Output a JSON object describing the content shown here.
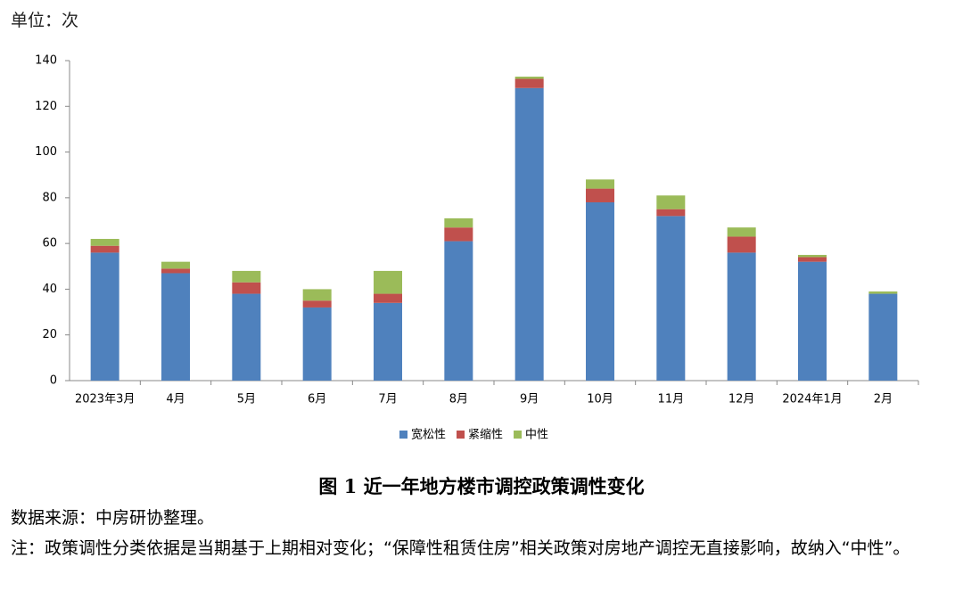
{
  "chart_data": {
    "type": "stacked_bar",
    "unit_label": "单位：次",
    "title": "图 1  近一年地方楼市调控政策调性变化",
    "categories": [
      "2023年3月",
      "4月",
      "5月",
      "6月",
      "7月",
      "8月",
      "9月",
      "10月",
      "11月",
      "12月",
      "2024年1月",
      "2月"
    ],
    "series": [
      {
        "name": "宽松性",
        "color": "#4f81bd",
        "values": [
          56,
          47,
          38,
          32,
          34,
          61,
          128,
          78,
          72,
          56,
          52,
          38
        ]
      },
      {
        "name": "紧缩性",
        "color": "#c0504d",
        "values": [
          3,
          2,
          5,
          3,
          4,
          6,
          4,
          6,
          3,
          7,
          2,
          0
        ]
      },
      {
        "name": "中性",
        "color": "#9bbb59",
        "values": [
          3,
          3,
          5,
          5,
          10,
          4,
          1,
          4,
          6,
          4,
          1,
          1
        ]
      }
    ],
    "ylim": [
      0,
      140
    ],
    "yticks": [
      0,
      20,
      40,
      60,
      80,
      100,
      120,
      140
    ],
    "grid": false,
    "legend": "bottom"
  },
  "source": "数据来源：中房研协整理。",
  "note": "注：政策调性分类依据是当期基于上期相对变化；“保障性租赁住房”相关政策对房地产调控无直接影响，故纳入“中性”。"
}
